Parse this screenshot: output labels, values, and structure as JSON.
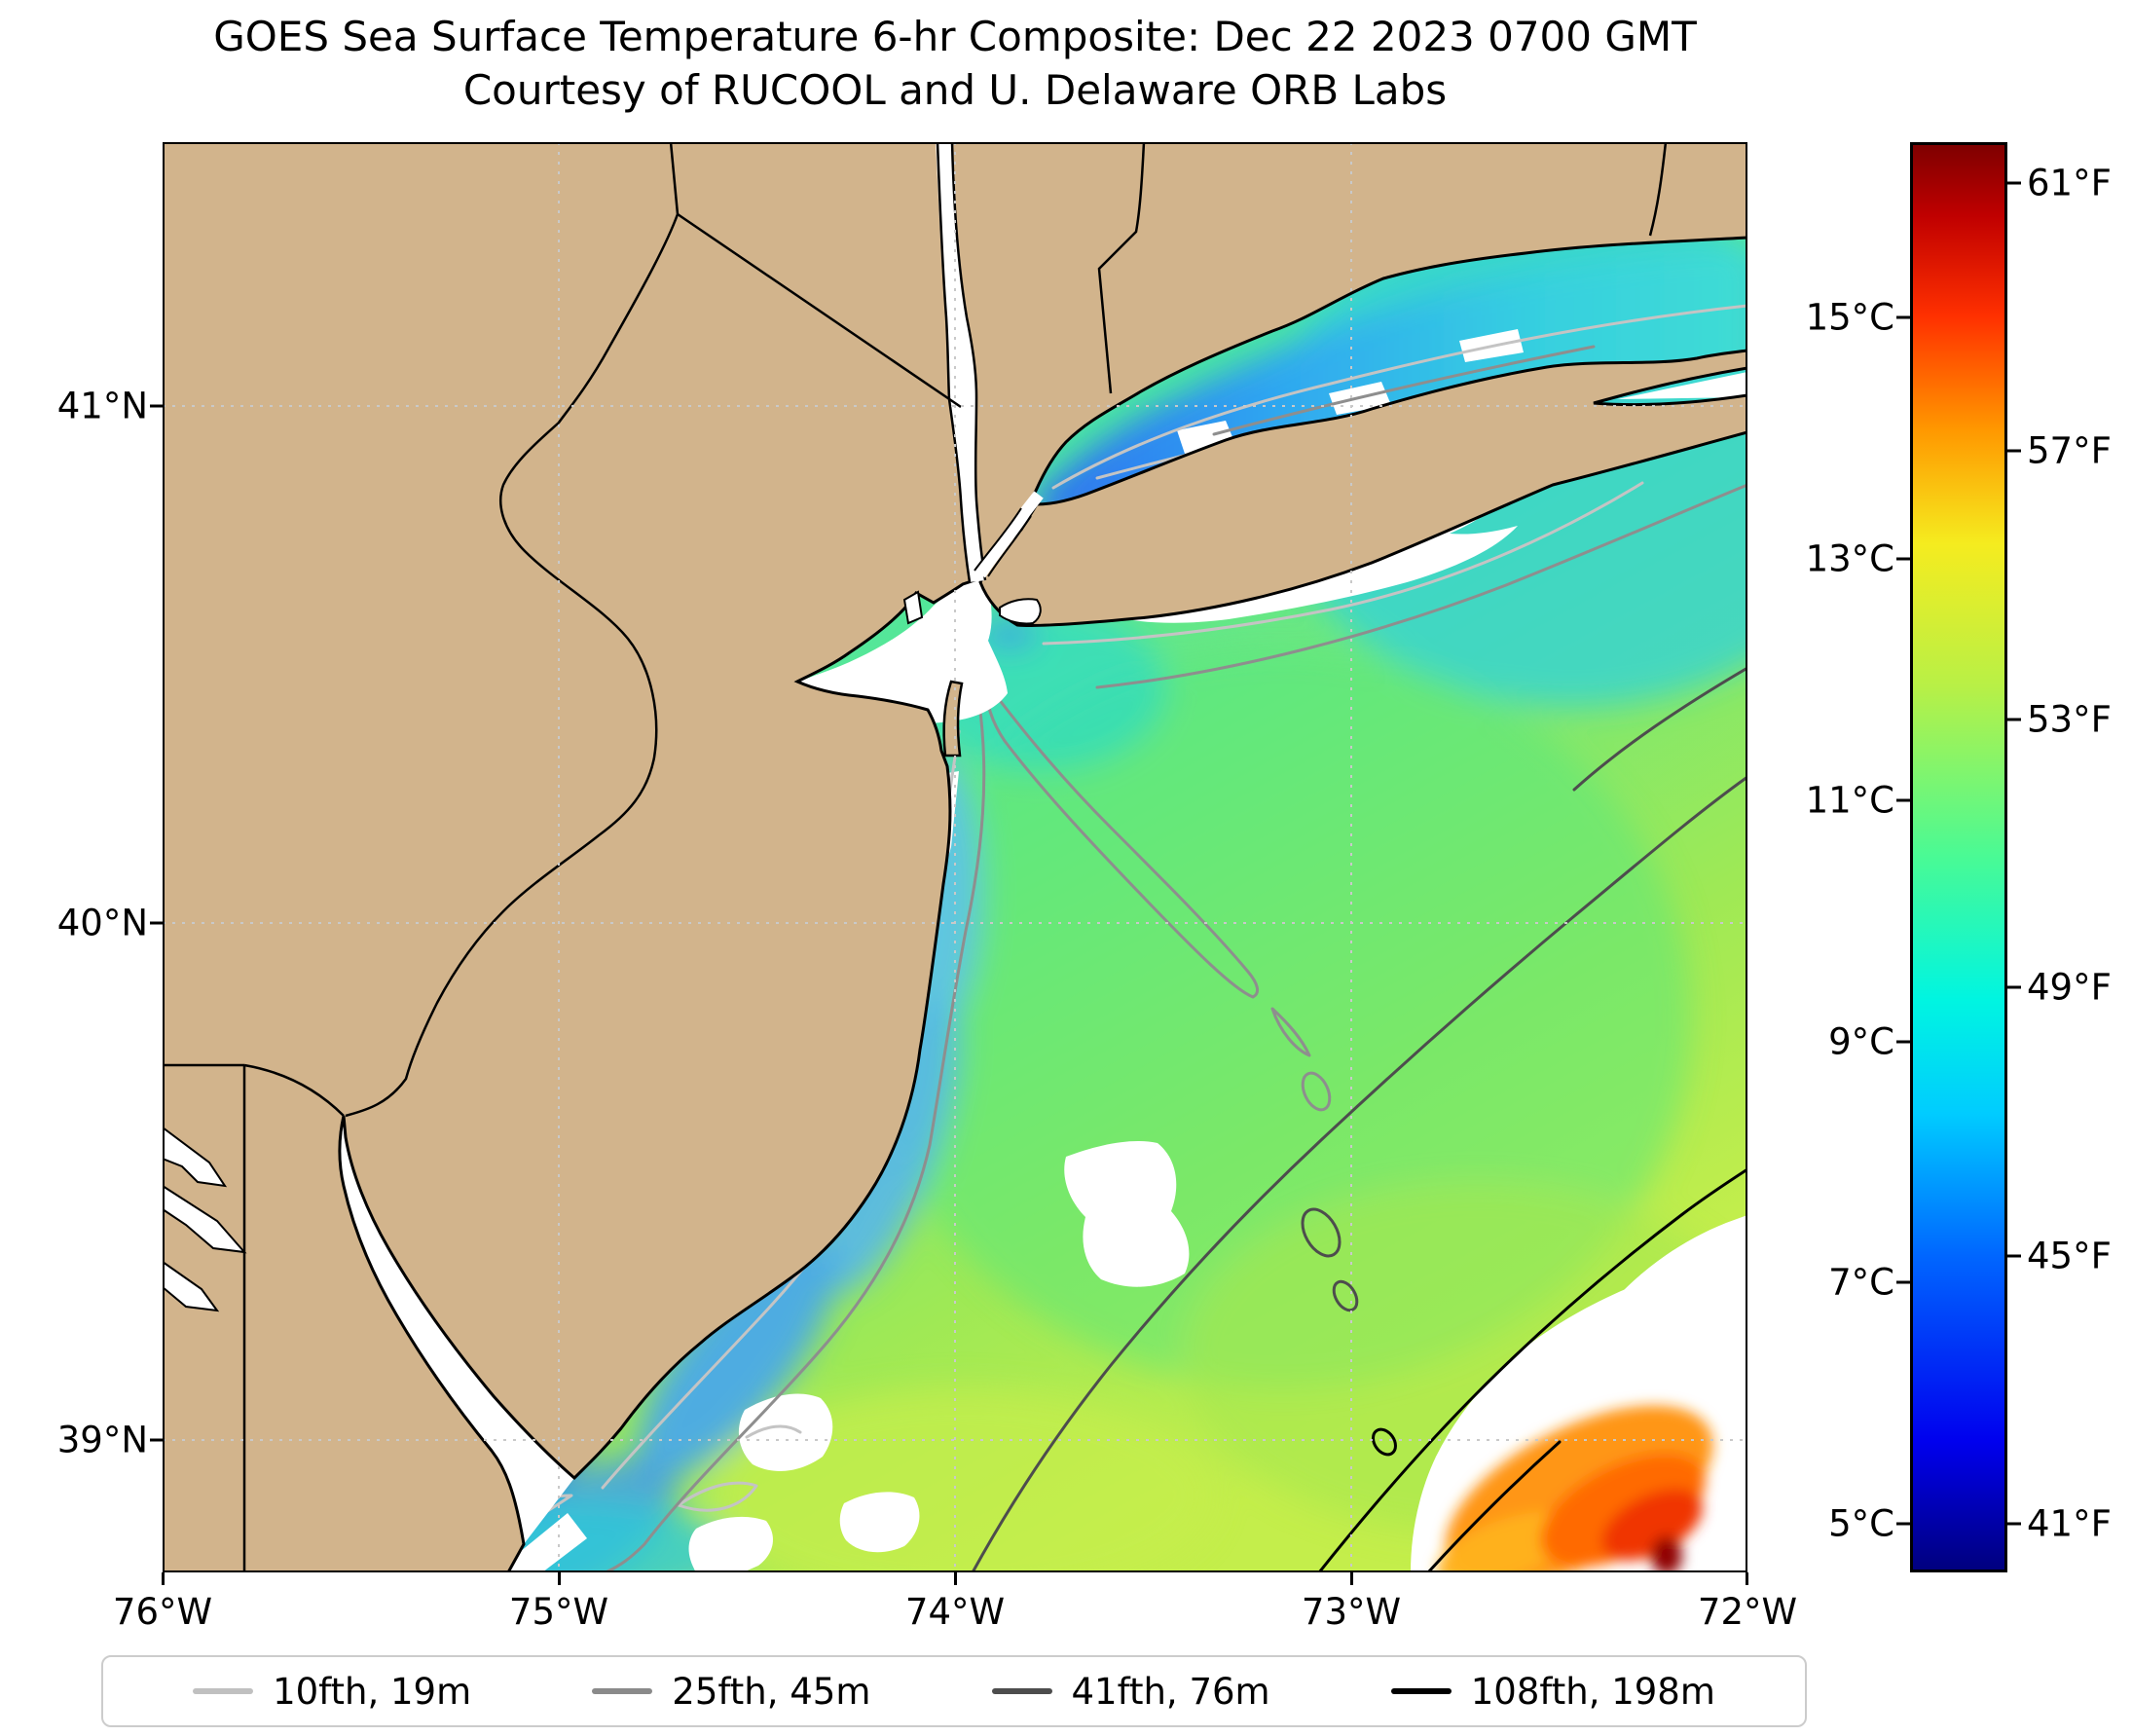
{
  "title": {
    "line1": "GOES Sea Surface Temperature 6-hr Composite: Dec 22 2023 0700 GMT",
    "line2": "Courtesy of RUCOOL and U. Delaware ORB Labs"
  },
  "axes": {
    "x_ticks": [
      "76°W",
      "75°W",
      "74°W",
      "73°W",
      "72°W"
    ],
    "y_ticks": [
      "41°N",
      "40°N",
      "39°N"
    ]
  },
  "colorbar": {
    "min_c": 4.6,
    "max_c": 16.45,
    "celsius": [
      {
        "label": "15°C",
        "value": 15
      },
      {
        "label": "13°C",
        "value": 13
      },
      {
        "label": "11°C",
        "value": 11
      },
      {
        "label": "9°C",
        "value": 9
      },
      {
        "label": "7°C",
        "value": 7
      },
      {
        "label": "5°C",
        "value": 5
      }
    ],
    "fahrenheit": [
      {
        "label": "61°F",
        "value": 61
      },
      {
        "label": "57°F",
        "value": 57
      },
      {
        "label": "53°F",
        "value": 53
      },
      {
        "label": "49°F",
        "value": 49
      },
      {
        "label": "45°F",
        "value": 45
      },
      {
        "label": "41°F",
        "value": 41
      }
    ],
    "gradient": [
      "#00007f 0%",
      "#0000ee 9%",
      "#0066ff 22%",
      "#00ccff 32%",
      "#00f5e1 40%",
      "#49fa95 50%",
      "#b8f046 62%",
      "#f5ec1f 72%",
      "#ff9800 80%",
      "#ff3000 88%",
      "#c00000 95%",
      "#7f0000 100%"
    ]
  },
  "legend": {
    "items": [
      {
        "label": "10fth, 19m",
        "color": "#c0c0c0"
      },
      {
        "label": "25fth, 45m",
        "color": "#8a8a8a"
      },
      {
        "label": "41fth, 76m",
        "color": "#4d4d4d"
      },
      {
        "label": "108fth, 198m",
        "color": "#000000"
      }
    ]
  },
  "map": {
    "land_color": "#d2b48c",
    "no_data_color": "#ffffff",
    "region": "Mid-Atlantic Bight: New Jersey, New York Harbor, Long Island Sound, Delaware Bay"
  }
}
